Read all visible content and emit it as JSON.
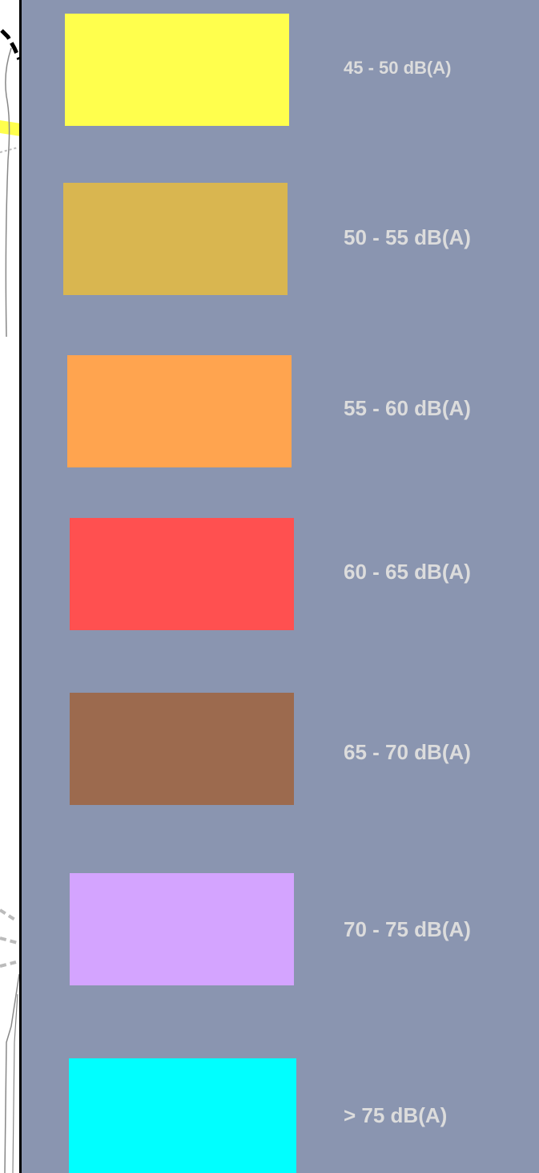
{
  "legend": {
    "items": [
      {
        "label": "45 - 50 dB(A)",
        "color": "#ffff4d"
      },
      {
        "label": "50 - 55 dB(A)",
        "color": "#d9b650"
      },
      {
        "label": "55 - 60 dB(A)",
        "color": "#ffa44f"
      },
      {
        "label": "60 - 65 dB(A)",
        "color": "#ff5050"
      },
      {
        "label": "65 - 70 dB(A)",
        "color": "#9c6a4e"
      },
      {
        "label": "70 - 75 dB(A)",
        "color": "#d4a4ff"
      },
      {
        "label": "> 75 dB(A)",
        "color": "#00ffff"
      }
    ]
  },
  "colors": {
    "panel_background": "#8a95b0",
    "label_text": "#dcdcdc",
    "panel_border": "#000000"
  }
}
